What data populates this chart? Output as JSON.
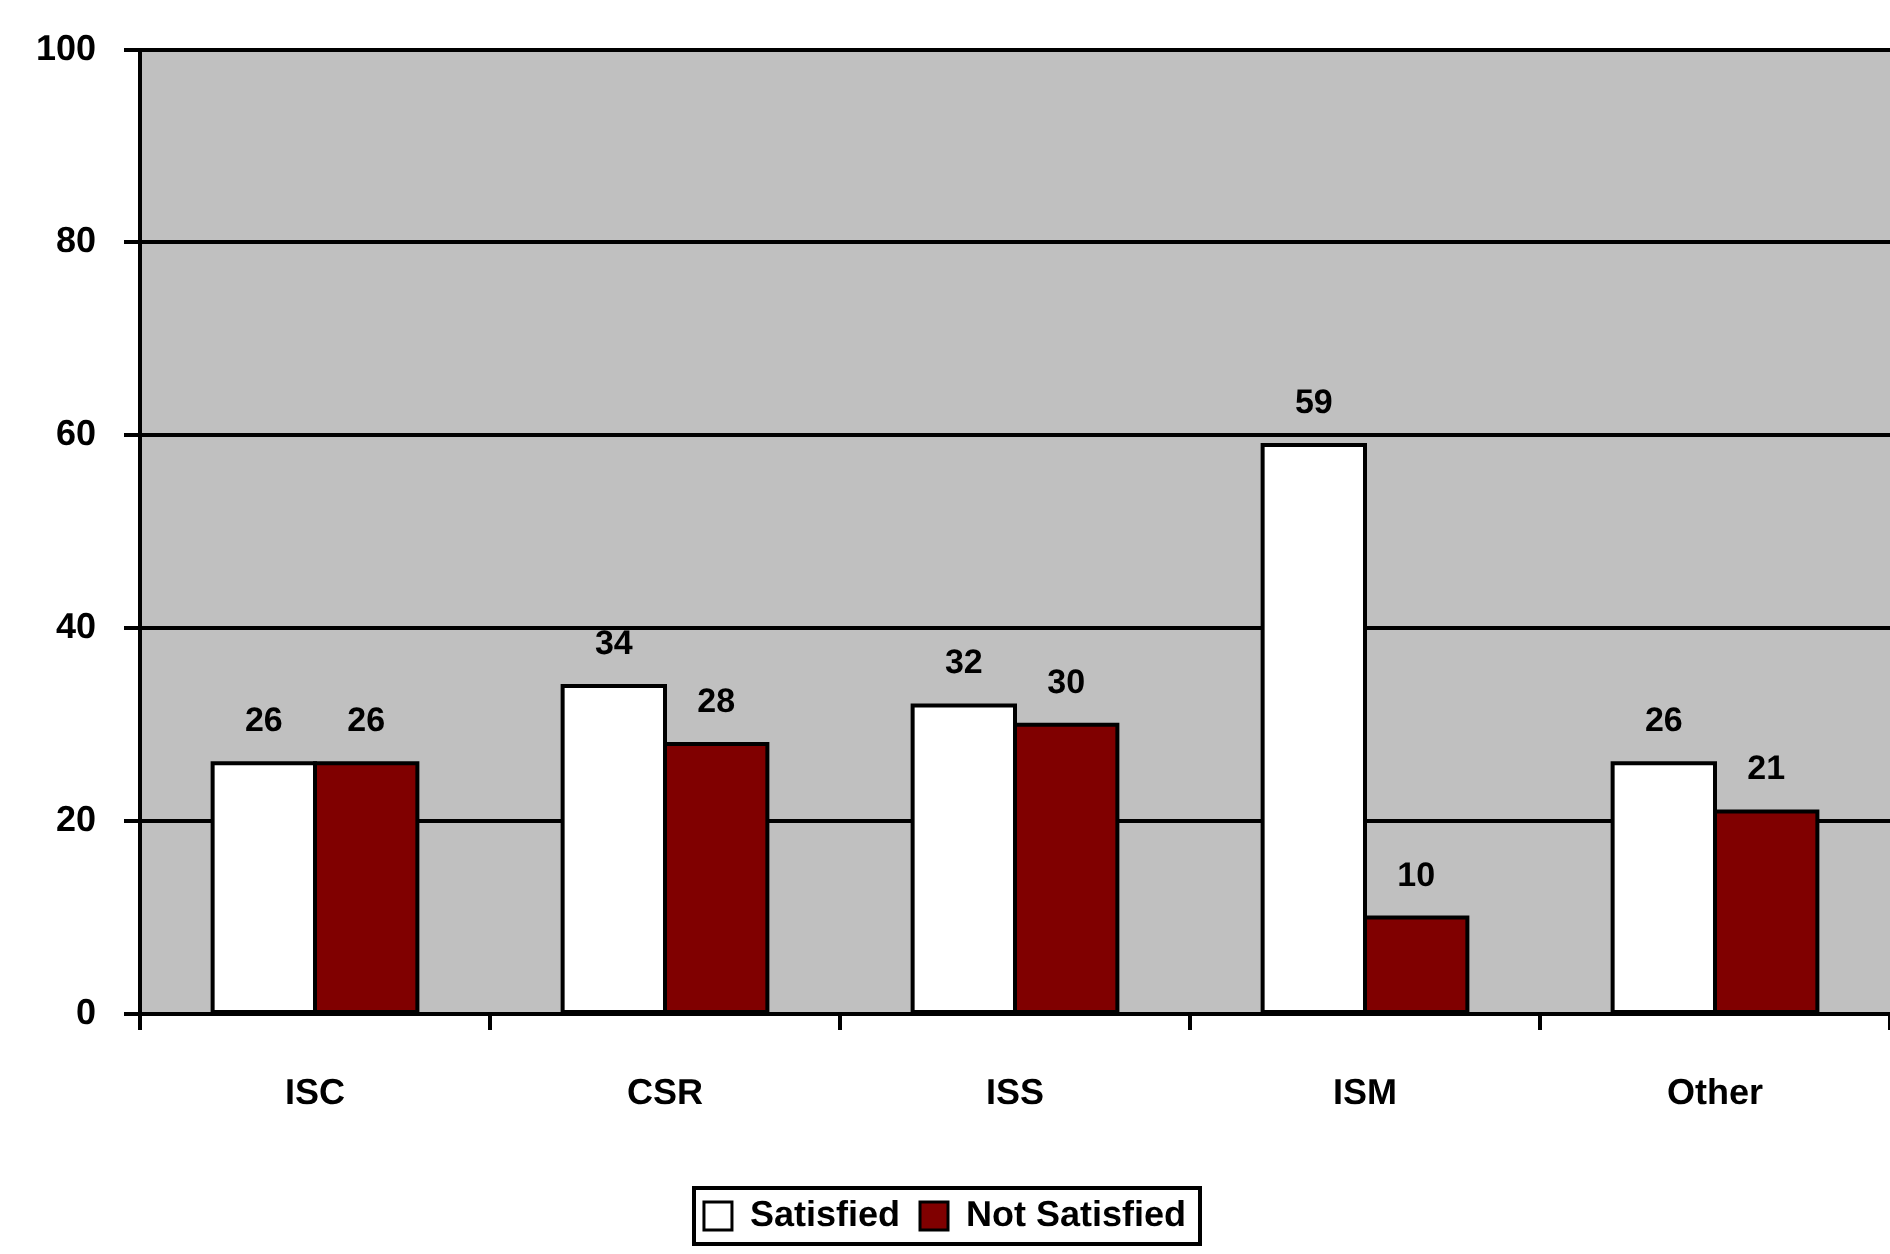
{
  "chart_data": {
    "type": "bar",
    "categories": [
      "ISC",
      "CSR",
      "ISS",
      "ISM",
      "Other"
    ],
    "series": [
      {
        "name": "Satisfied",
        "color": "#ffffff",
        "values": [
          26,
          34,
          32,
          59,
          26
        ]
      },
      {
        "name": "Not Satisfied",
        "color": "#800000",
        "values": [
          26,
          28,
          30,
          10,
          21
        ]
      }
    ],
    "ylim": [
      0,
      100
    ],
    "yticks": [
      0,
      20,
      40,
      60,
      80,
      100
    ],
    "grid": "y",
    "legend": "bottom",
    "data_labels": true
  }
}
